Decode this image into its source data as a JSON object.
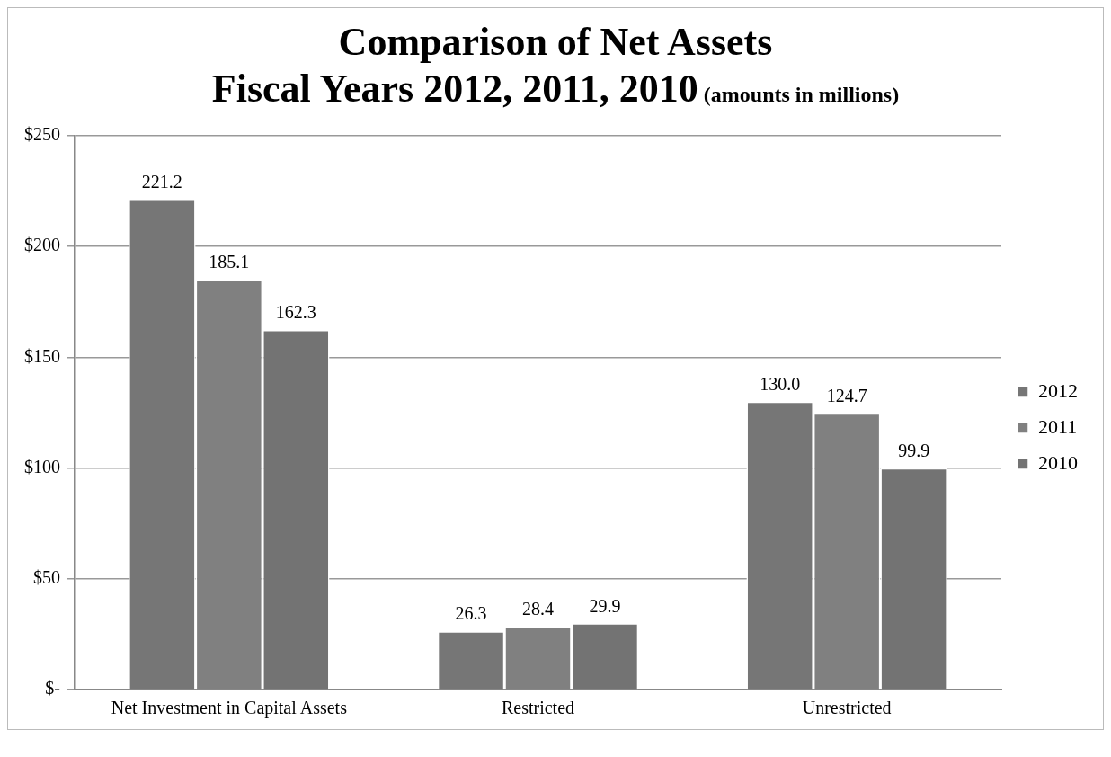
{
  "chart_data": {
    "type": "bar",
    "title": "Comparison of Net Assets\nFiscal Years 2012, 2011, 2010",
    "subtitle": "(amounts in millions)",
    "categories": [
      "Net Investment in Capital Assets",
      "Restricted",
      "Unrestricted"
    ],
    "series": [
      {
        "name": "2012",
        "color": "#767676",
        "values": [
          221.2,
          26.3,
          130.0
        ],
        "value_labels": [
          "221.2",
          "26.3",
          "130.0"
        ]
      },
      {
        "name": "2011",
        "color": "#808080",
        "values": [
          185.1,
          28.4,
          124.7
        ],
        "value_labels": [
          "185.1",
          "28.4",
          "124.7"
        ]
      },
      {
        "name": "2010",
        "color": "#737373",
        "values": [
          162.3,
          29.9,
          99.9
        ],
        "value_labels": [
          "162.3",
          "29.9",
          "99.9"
        ]
      }
    ],
    "ylim": [
      0,
      250
    ],
    "yticks": [
      {
        "value": 0,
        "label": "$-"
      },
      {
        "value": 50,
        "label": "$50"
      },
      {
        "value": 100,
        "label": "$100"
      },
      {
        "value": 150,
        "label": "$150"
      },
      {
        "value": 200,
        "label": "$200"
      },
      {
        "value": 250,
        "label": "$250"
      }
    ],
    "grid": "y",
    "legend": "right"
  }
}
